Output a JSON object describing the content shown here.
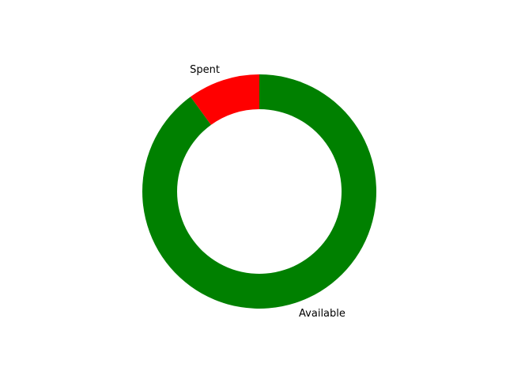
{
  "chart_data": {
    "type": "pie",
    "variant": "donut",
    "title": "",
    "start_angle_deg": 90,
    "direction": "counterclockwise",
    "slices": [
      {
        "label": "Spent",
        "value": 10,
        "color": "#ff0000"
      },
      {
        "label": "Available",
        "value": 90,
        "color": "#008000"
      }
    ],
    "legend": "none"
  }
}
